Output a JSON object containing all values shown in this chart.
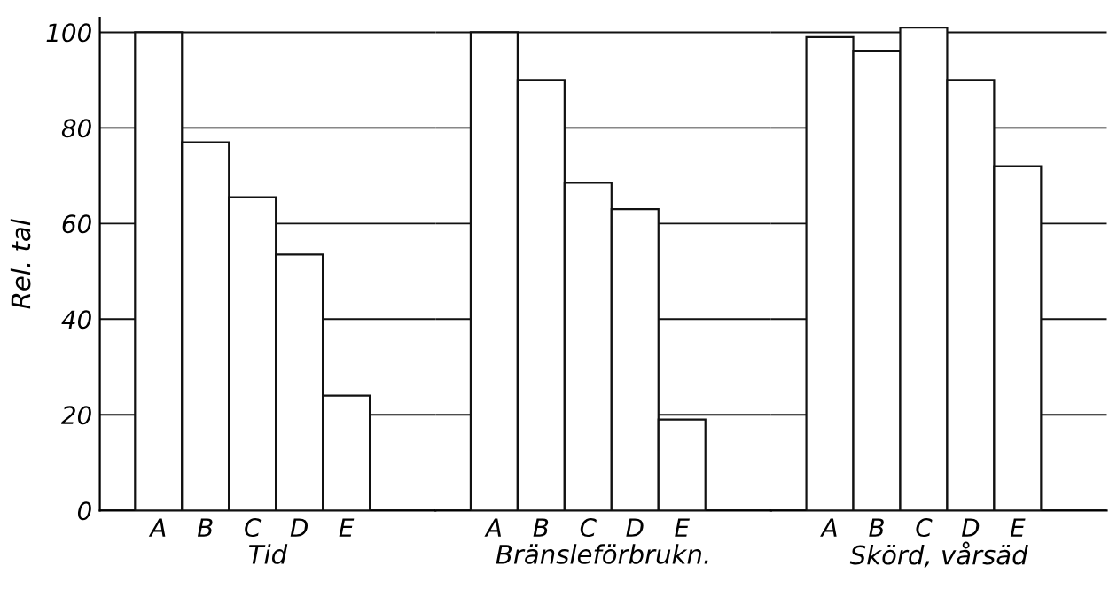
{
  "chart_data": [
    {
      "type": "bar",
      "categories": [
        "A",
        "B",
        "C",
        "D",
        "E"
      ],
      "values": [
        100,
        77,
        65.5,
        53.5,
        24
      ],
      "color": "#ffffff",
      "xlabel": "Tid",
      "ylabel": "Rel. tal",
      "ylim": [
        0,
        103
      ],
      "yticks": [
        0,
        20,
        40,
        60,
        80,
        100
      ],
      "grid": "y"
    },
    {
      "type": "bar",
      "categories": [
        "A",
        "B",
        "C",
        "D",
        "E"
      ],
      "values": [
        100,
        90,
        68.5,
        63,
        19
      ],
      "color": "#ffffff",
      "xlabel": "Bränsleförbrukn.",
      "ylim": [
        0,
        103
      ],
      "yticks": [
        0,
        20,
        40,
        60,
        80,
        100
      ],
      "grid": "y",
      "tick_labels": "x"
    },
    {
      "type": "bar",
      "categories": [
        "A",
        "B",
        "C",
        "D",
        "E"
      ],
      "values": [
        99,
        96,
        101,
        90,
        72
      ],
      "color": "#ffffff",
      "xlabel": "Skörd, vårsäd",
      "ylim": [
        0,
        103
      ],
      "yticks": [
        0,
        20,
        40,
        60,
        80,
        100
      ],
      "grid": "y",
      "tick_labels": "x"
    }
  ]
}
